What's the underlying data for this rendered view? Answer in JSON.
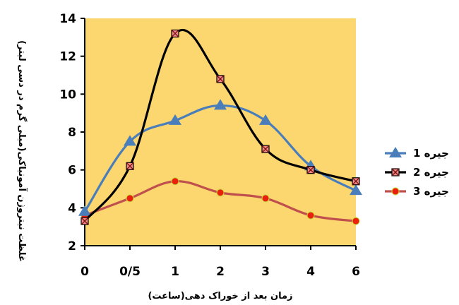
{
  "chart_data": {
    "type": "line",
    "categories": [
      "0",
      "0/5",
      "1",
      "2",
      "3",
      "4",
      "6"
    ],
    "series": [
      {
        "name": "جیره 1",
        "values": [
          3.8,
          7.5,
          8.6,
          9.4,
          8.6,
          6.2,
          4.9
        ],
        "color": "#4a7ebb",
        "marker": "triangle"
      },
      {
        "name": "جیره 2",
        "values": [
          3.3,
          6.2,
          13.2,
          10.8,
          7.1,
          6.0,
          5.4
        ],
        "color": "#000000",
        "marker": "x-square"
      },
      {
        "name": "جیره 3",
        "values": [
          3.6,
          4.5,
          5.4,
          4.8,
          4.5,
          3.6,
          3.3
        ],
        "color": "#c0504d",
        "marker": "circle"
      }
    ],
    "ylim": [
      2,
      14
    ],
    "yticks": [
      2,
      4,
      6,
      8,
      10,
      12,
      14
    ],
    "xlabel": "زمان بعد از خوراک دهی(ساعت)",
    "ylabel": "غلظت نیتروژن آمونیاکی(میلی گرم در دسی لیتر)",
    "title": "",
    "grid": false,
    "legend_position": "right",
    "plot_background": "#fcd66e"
  }
}
